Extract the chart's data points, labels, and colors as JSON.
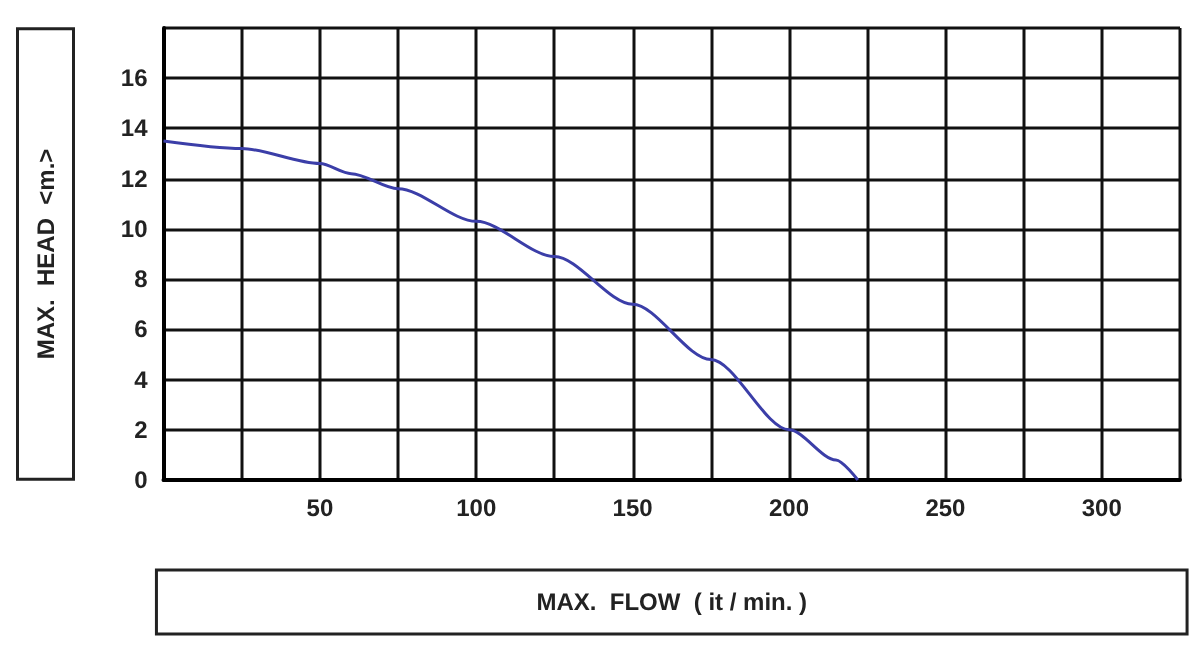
{
  "chart_data": {
    "type": "line",
    "xlabel": "MAX.  FLOW  ( it / min. )",
    "ylabel": "MAX.  HEAD  <m.>",
    "x": [
      0,
      25,
      50,
      60,
      75,
      100,
      125,
      150,
      175,
      200,
      215,
      222
    ],
    "series": [
      {
        "color": "#3b3ea8",
        "values": [
          13.5,
          13.2,
          12.6,
          12.2,
          11.6,
          10.3,
          8.9,
          7.0,
          4.8,
          2.0,
          0.8,
          0
        ]
      }
    ],
    "xlim": [
      0,
      325
    ],
    "ylim": [
      0,
      18
    ],
    "xticks": [
      {
        "value": 0,
        "label": null
      },
      {
        "value": 25,
        "label": null
      },
      50,
      {
        "value": 75,
        "label": null
      },
      100,
      {
        "value": 125,
        "label": null
      },
      150,
      {
        "value": 175,
        "label": null
      },
      200,
      {
        "value": 225,
        "label": null
      },
      250,
      {
        "value": 275,
        "label": null
      },
      300,
      {
        "value": 325,
        "label": null
      }
    ],
    "yticks": [
      0,
      2,
      4,
      6,
      8,
      10,
      12,
      14,
      16,
      {
        "value": 18,
        "label": null
      }
    ],
    "grid": true,
    "marker": "none",
    "line_style": "solid"
  }
}
